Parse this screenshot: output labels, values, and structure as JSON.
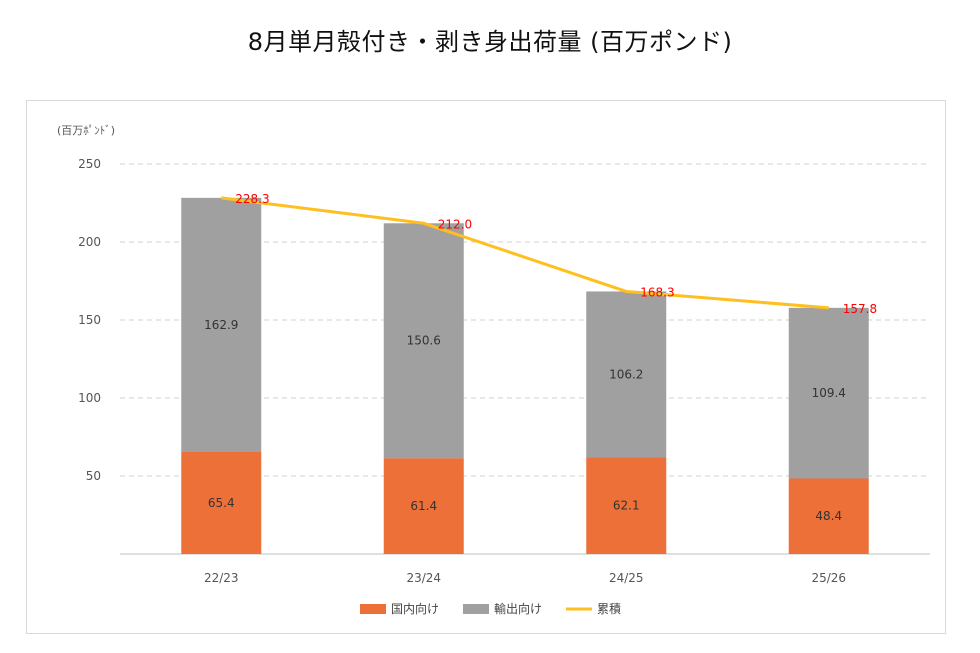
{
  "page": {
    "title": "8月単月殻付き・剥き身出荷量 (百万ポンド)"
  },
  "chart_data": {
    "type": "bar",
    "stacked": true,
    "title": "8月単月殻付き・剥き身出荷量 (百万ポンド)",
    "unit_label": "(百万ﾎﾟﾝﾄﾞ)",
    "categories": [
      "22/23",
      "23/24",
      "24/25",
      "25/26"
    ],
    "series": [
      {
        "name": "国内向け",
        "kind": "bar",
        "color": "#ed7038",
        "values": [
          65.4,
          61.4,
          62.1,
          48.4
        ],
        "labels": [
          "65.4",
          "61.4",
          "62.1",
          "48.4"
        ]
      },
      {
        "name": "輸出向け",
        "kind": "bar",
        "color": "#a0a0a0",
        "values": [
          162.9,
          150.6,
          106.2,
          109.4
        ],
        "labels": [
          "162.9",
          "150.6",
          "106.2",
          "109.4"
        ]
      },
      {
        "name": "累積",
        "kind": "line",
        "color": "#ffbf1f",
        "values": [
          228.3,
          212.0,
          168.3,
          157.8
        ],
        "labels": [
          "228.3",
          "212.0",
          "168.3",
          "157.8"
        ],
        "label_color": "#ff0000"
      }
    ],
    "y_ticks": [
      "50",
      "100",
      "150",
      "200",
      "250"
    ],
    "ylim": [
      0,
      250
    ],
    "grid": "dashed horizontal",
    "legend_position": "bottom"
  }
}
